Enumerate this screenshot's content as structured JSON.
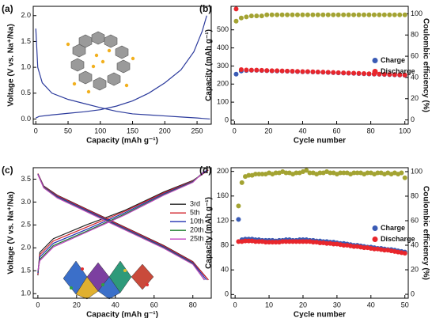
{
  "chart_data": [
    {
      "type": "line",
      "label": "(a)",
      "x_label": "Capacity (mAh g⁻¹)",
      "y_label": "Voltage (V vs. Na⁺/Na)",
      "xlim": [
        -4,
        272
      ],
      "xticks": [
        0,
        50,
        100,
        150,
        200,
        250
      ],
      "ylim": [
        -0.1,
        2.18
      ],
      "yticks": [
        {
          "value": 0,
          "label": "0.0"
        },
        0.5,
        {
          "value": 1,
          "label": "1.0"
        },
        1.5,
        {
          "value": 2,
          "label": "2.0"
        }
      ],
      "series": [
        {
          "color": "#2b3a9c",
          "x": [
            0,
            3,
            10,
            25,
            50,
            75,
            100,
            125,
            150,
            175,
            200,
            225,
            250,
            270
          ],
          "values": [
            1.75,
            1.0,
            0.7,
            0.5,
            0.38,
            0.3,
            0.22,
            0.15,
            0.1,
            0.08,
            0.06,
            0.04,
            0.02,
            0.0
          ]
        },
        {
          "color": "#2b3a9c",
          "x": [
            0,
            5,
            25,
            50,
            75,
            100,
            125,
            150,
            175,
            200,
            225,
            245,
            258,
            265
          ],
          "values": [
            0.02,
            0.05,
            0.08,
            0.11,
            0.14,
            0.18,
            0.25,
            0.35,
            0.5,
            0.7,
            0.95,
            1.3,
            1.7,
            2.0
          ]
        }
      ]
    },
    {
      "type": "scatter",
      "label": "(b)",
      "x_label": "Cycle number",
      "y_label": "Capacity (mAh g⁻¹)",
      "y2_label": "Coulombic efficiency (%)",
      "xlim": [
        -2,
        102
      ],
      "xticks": [
        0,
        20,
        40,
        60,
        80,
        100
      ],
      "ylim": [
        -22,
        630
      ],
      "yticks": [
        0,
        100,
        200,
        300,
        400,
        500
      ],
      "y2lim": [
        -4,
        107
      ],
      "y2ticks": [
        0,
        20,
        40,
        60,
        80,
        100
      ],
      "legend": "center right",
      "x": [
        1,
        4,
        7,
        10,
        13,
        16,
        19,
        22,
        25,
        28,
        31,
        34,
        37,
        40,
        43,
        46,
        49,
        52,
        55,
        58,
        61,
        64,
        67,
        70,
        73,
        76,
        79,
        82,
        85,
        88,
        91,
        94,
        97,
        100
      ],
      "series": [
        {
          "name": "Charge",
          "color": "#3a5bb5",
          "values": [
            255,
            272,
            275,
            276,
            276,
            275,
            274,
            273,
            272,
            272,
            271,
            270,
            269,
            268,
            268,
            267,
            266,
            265,
            264,
            263,
            262,
            261,
            260,
            259,
            258,
            257,
            256,
            255,
            254,
            253,
            252,
            251,
            250,
            249
          ]
        },
        {
          "name": "Discharge",
          "color": "#e8262c",
          "values": [
            615,
            280,
            278,
            277,
            277,
            276,
            275,
            274,
            274,
            273,
            272,
            271,
            270,
            269,
            269,
            268,
            267,
            266,
            265,
            264,
            263,
            262,
            261,
            260,
            259,
            258,
            257,
            256,
            255,
            254,
            253,
            252,
            251,
            250
          ]
        },
        {
          "color": "#a3a332",
          "axis": "y2",
          "values": [
            93,
            96,
            97,
            98,
            98,
            98,
            99,
            99,
            99,
            99,
            99,
            99,
            99,
            99,
            99,
            99,
            99,
            99,
            99,
            99,
            99,
            99,
            99,
            99,
            99,
            99,
            99,
            99,
            99,
            99,
            99,
            99,
            99,
            99
          ]
        }
      ]
    },
    {
      "type": "line",
      "label": "(c)",
      "x_label": "Capacity (mAh g⁻¹)",
      "y_label": "Voltage (V vs. Na⁺/Na)",
      "xlim": [
        -2.4,
        89.5
      ],
      "xticks": [
        0,
        20,
        40,
        60,
        80
      ],
      "ylim": [
        0.9,
        3.75
      ],
      "yticks": [
        {
          "value": 1,
          "label": "1.0"
        },
        1.5,
        {
          "value": 2,
          "label": "2.0"
        },
        2.5,
        {
          "value": 3,
          "label": "3.0"
        },
        3.5
      ],
      "legend": "upper right",
      "series": [
        {
          "name": "3rd",
          "color": "#222222",
          "x": [
            0,
            3,
            10,
            25,
            45,
            65,
            80,
            88,
            null,
            0,
            1,
            8,
            25,
            45,
            65,
            80,
            88
          ],
          "values": [
            3.62,
            3.35,
            3.15,
            2.85,
            2.45,
            2.05,
            1.7,
            1.3,
            null,
            1.4,
            1.9,
            2.2,
            2.5,
            2.82,
            3.22,
            3.47,
            3.7
          ]
        },
        {
          "name": "5th",
          "color": "#d0202a",
          "x": [
            0,
            3,
            10,
            25,
            45,
            65,
            80,
            88,
            null,
            0,
            1,
            8,
            25,
            45,
            65,
            80,
            88
          ],
          "values": [
            3.62,
            3.34,
            3.14,
            2.84,
            2.44,
            2.04,
            1.69,
            1.3,
            null,
            1.42,
            1.85,
            2.15,
            2.45,
            2.8,
            3.2,
            3.46,
            3.7
          ]
        },
        {
          "name": "10th",
          "color": "#2030b0",
          "x": [
            0,
            3,
            10,
            25,
            45,
            65,
            80,
            87,
            null,
            0,
            1,
            8,
            25,
            45,
            65,
            80,
            87
          ],
          "values": [
            3.61,
            3.33,
            3.12,
            2.82,
            2.42,
            2.02,
            1.67,
            1.3,
            null,
            1.45,
            1.8,
            2.1,
            2.4,
            2.77,
            3.18,
            3.45,
            3.69
          ]
        },
        {
          "name": "20th",
          "color": "#208030",
          "x": [
            0,
            3,
            10,
            25,
            45,
            65,
            80,
            86,
            null,
            0,
            1,
            8,
            25,
            45,
            65,
            80,
            86
          ],
          "values": [
            3.6,
            3.32,
            3.1,
            2.8,
            2.4,
            2.0,
            1.65,
            1.3,
            null,
            1.48,
            1.75,
            2.05,
            2.36,
            2.74,
            3.16,
            3.44,
            3.68
          ]
        },
        {
          "name": "25th",
          "color": "#c040c0",
          "x": [
            0,
            3,
            10,
            25,
            45,
            65,
            80,
            86,
            null,
            0,
            1,
            8,
            25,
            45,
            65,
            80,
            86
          ],
          "values": [
            3.6,
            3.31,
            3.09,
            2.79,
            2.39,
            1.99,
            1.64,
            1.3,
            null,
            1.5,
            1.72,
            2.02,
            2.34,
            2.72,
            3.15,
            3.43,
            3.68
          ]
        }
      ]
    },
    {
      "type": "scatter",
      "label": "(d)",
      "x_label": "Cycle number",
      "y_label": "Capacity (mAh g⁻¹)",
      "y2_label": "Coulombic efficiency (%)",
      "xlim": [
        -1.2,
        51
      ],
      "xticks": [
        0,
        10,
        20,
        30,
        40,
        50
      ],
      "ylim": [
        -6,
        206
      ],
      "yticks": [
        0,
        40,
        80,
        120,
        160,
        200
      ],
      "y2lim": [
        -3.2,
        103.2
      ],
      "y2ticks": [
        0,
        20,
        40,
        60,
        80,
        100
      ],
      "legend": "center right",
      "x": [
        1,
        2,
        3,
        4,
        5,
        6,
        7,
        8,
        9,
        10,
        11,
        12,
        13,
        14,
        15,
        16,
        17,
        18,
        19,
        20,
        21,
        22,
        23,
        24,
        25,
        26,
        27,
        28,
        29,
        30,
        31,
        32,
        33,
        34,
        35,
        36,
        37,
        38,
        39,
        40,
        41,
        42,
        43,
        44,
        45,
        46,
        47,
        48,
        49,
        50
      ],
      "series": [
        {
          "name": "Charge",
          "color": "#3a5bb5",
          "values": [
            122,
            89,
            90,
            90,
            90,
            89,
            89,
            88,
            88,
            88,
            88,
            87,
            88,
            88,
            89,
            89,
            88,
            88,
            89,
            89,
            89,
            88,
            88,
            87,
            87,
            86,
            86,
            85,
            85,
            84,
            83,
            83,
            82,
            81,
            80,
            80,
            79,
            78,
            77,
            77,
            76,
            75,
            75,
            74,
            73,
            73,
            72,
            71,
            70,
            69
          ]
        },
        {
          "name": "Discharge",
          "color": "#e8262c",
          "values": [
            86,
            86,
            87,
            87,
            87,
            86,
            86,
            86,
            85,
            85,
            85,
            85,
            85,
            86,
            86,
            86,
            86,
            86,
            86,
            86,
            86,
            86,
            85,
            85,
            84,
            84,
            83,
            83,
            82,
            82,
            81,
            80,
            80,
            79,
            78,
            78,
            77,
            76,
            76,
            75,
            74,
            74,
            73,
            72,
            72,
            71,
            70,
            69,
            68,
            67
          ]
        },
        {
          "color": "#a3a332",
          "axis": "y2",
          "values": [
            72,
            91,
            96,
            97,
            97,
            98,
            98,
            98,
            98,
            99,
            98,
            99,
            99,
            100,
            99,
            99,
            98,
            99,
            99,
            100,
            101,
            99,
            99,
            98,
            99,
            99,
            100,
            99,
            99,
            98,
            99,
            99,
            99,
            98,
            99,
            99,
            99,
            98,
            99,
            99,
            98,
            99,
            99,
            98,
            99,
            98,
            99,
            98,
            99,
            95
          ]
        }
      ]
    }
  ]
}
